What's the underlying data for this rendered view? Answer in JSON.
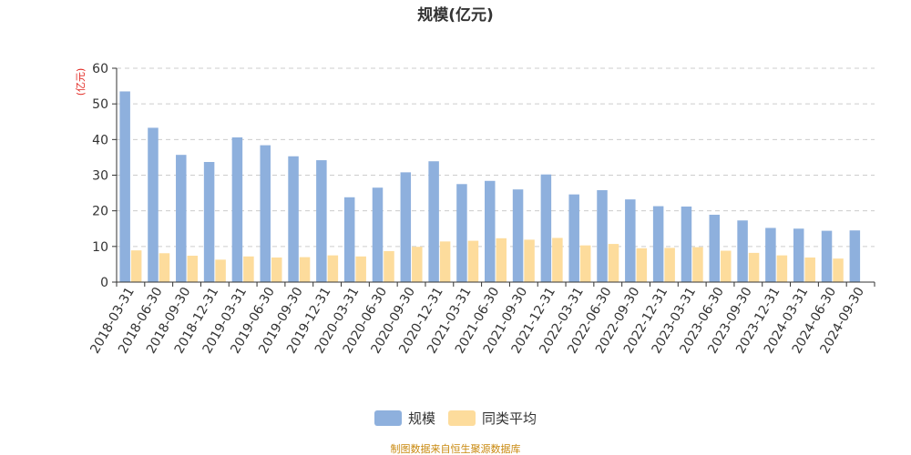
{
  "chart_data": {
    "type": "bar",
    "title": "规模(亿元)",
    "unit_label": "(亿元)",
    "ylim": [
      0,
      60
    ],
    "yticks": [
      0,
      10,
      20,
      30,
      40,
      50,
      60
    ],
    "categories": [
      "2018-03-31",
      "2018-06-30",
      "2018-09-30",
      "2018-12-31",
      "2019-03-31",
      "2019-06-30",
      "2019-09-30",
      "2019-12-31",
      "2020-03-31",
      "2020-06-30",
      "2020-09-30",
      "2020-12-31",
      "2021-03-31",
      "2021-06-30",
      "2021-09-30",
      "2021-12-31",
      "2022-03-31",
      "2022-06-30",
      "2022-09-30",
      "2022-12-31",
      "2023-03-31",
      "2023-06-30",
      "2023-09-30",
      "2023-12-31",
      "2024-03-31",
      "2024-06-30",
      "2024-09-30"
    ],
    "series": [
      {
        "name": "规模",
        "color": "#8eb0dd",
        "values": [
          53.5,
          43.3,
          35.7,
          33.7,
          40.6,
          38.4,
          35.3,
          34.2,
          23.8,
          26.5,
          30.8,
          33.9,
          27.5,
          28.4,
          26.0,
          30.2,
          24.6,
          25.8,
          23.2,
          21.3,
          21.2,
          18.9,
          17.3,
          15.2,
          15.0,
          14.4,
          14.5
        ]
      },
      {
        "name": "同类平均",
        "color": "#fddc9c",
        "values": [
          8.9,
          8.1,
          7.4,
          6.3,
          7.2,
          6.9,
          7.0,
          7.5,
          7.2,
          8.7,
          9.9,
          11.4,
          11.6,
          12.3,
          11.9,
          12.4,
          10.3,
          10.7,
          9.5,
          9.6,
          9.8,
          8.8,
          8.2,
          7.5,
          6.9,
          6.6,
          0
        ]
      }
    ],
    "legend_position": "bottom-center"
  },
  "footer": {
    "source": "制图数据来自恒生聚源数据库"
  }
}
